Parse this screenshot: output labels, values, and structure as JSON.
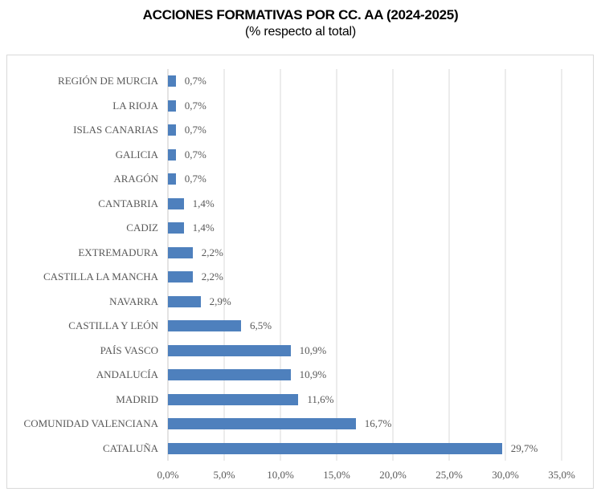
{
  "chart_data": {
    "type": "bar",
    "orientation": "horizontal",
    "title": "ACCIONES FORMATIVAS POR CC. AA (2024-2025)",
    "subtitle": "(% respecto al total)",
    "xlabel": "",
    "ylabel": "",
    "xlim": [
      0,
      35
    ],
    "grid": true,
    "legend": false,
    "x_ticks": [
      "0,0%",
      "5,0%",
      "10,0%",
      "15,0%",
      "20,0%",
      "25,0%",
      "30,0%",
      "35,0%"
    ],
    "rows": [
      {
        "label": "REGIÓN DE MURCIA",
        "value": 0.7,
        "value_label": "0,7%"
      },
      {
        "label": "LA RIOJA",
        "value": 0.7,
        "value_label": "0,7%"
      },
      {
        "label": "ISLAS CANARIAS",
        "value": 0.7,
        "value_label": "0,7%"
      },
      {
        "label": "GALICIA",
        "value": 0.7,
        "value_label": "0,7%"
      },
      {
        "label": "ARAGÓN",
        "value": 0.7,
        "value_label": "0,7%"
      },
      {
        "label": "CANTABRIA",
        "value": 1.4,
        "value_label": "1,4%"
      },
      {
        "label": "CADIZ",
        "value": 1.4,
        "value_label": "1,4%"
      },
      {
        "label": "EXTREMADURA",
        "value": 2.2,
        "value_label": "2,2%"
      },
      {
        "label": "CASTILLA LA MANCHA",
        "value": 2.2,
        "value_label": "2,2%"
      },
      {
        "label": "NAVARRA",
        "value": 2.9,
        "value_label": "2,9%"
      },
      {
        "label": "CASTILLA Y LEÓN",
        "value": 6.5,
        "value_label": "6,5%"
      },
      {
        "label": "PAÍS VASCO",
        "value": 10.9,
        "value_label": "10,9%"
      },
      {
        "label": "ANDALUCÍA",
        "value": 10.9,
        "value_label": "10,9%"
      },
      {
        "label": "MADRID",
        "value": 11.6,
        "value_label": "11,6%"
      },
      {
        "label": "COMUNIDAD VALENCIANA",
        "value": 16.7,
        "value_label": "16,7%"
      },
      {
        "label": "CATALUÑA",
        "value": 29.7,
        "value_label": "29,7%"
      }
    ],
    "colors": {
      "bar": "#4e80bd",
      "text": "#595959",
      "grid": "#d9d9d9",
      "axis": "#c9c7c7",
      "border": "#d9d9d9",
      "background": "#ffffff",
      "title": "#000000"
    }
  }
}
